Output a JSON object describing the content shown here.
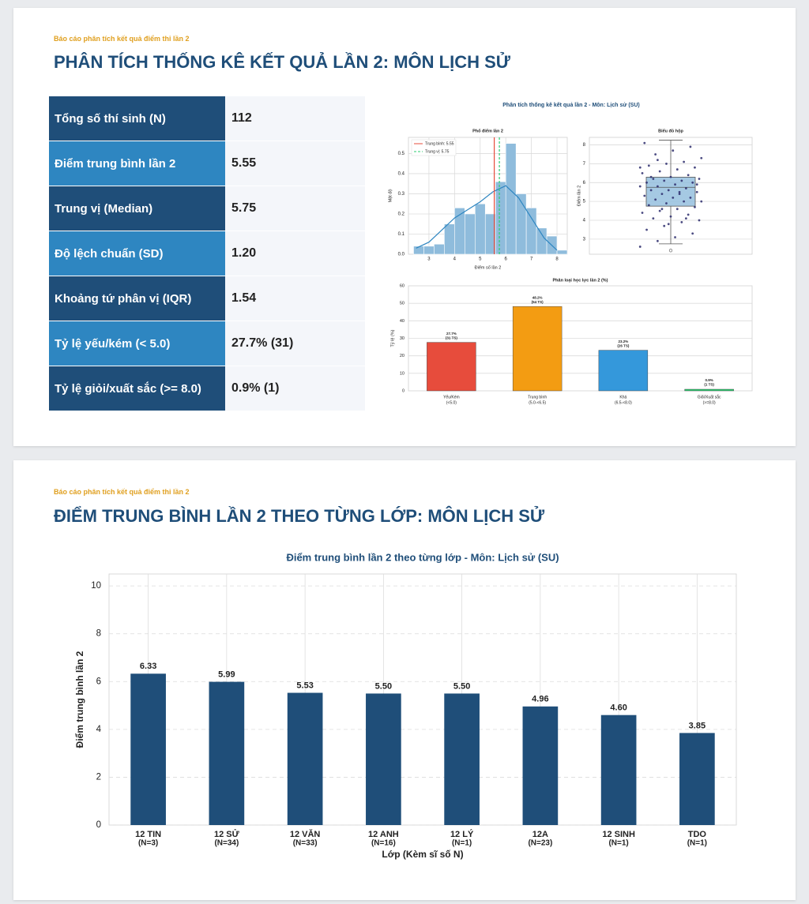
{
  "slides": [
    {
      "kicker": "Báo cáo phân tích kết quả điểm thi lần 2",
      "title": "PHÂN TÍCH THỐNG KÊ KẾT QUẢ LẦN 2: MÔN LỊCH SỬ",
      "figure_title": "Phân tích thống kê kết quả lần 2 - Môn: Lịch sử (SU)"
    },
    {
      "kicker": "Báo cáo phân tích kết quả điểm thi lần 2",
      "title": "ĐIỂM TRUNG BÌNH LẦN 2 THEO TỪNG LỚP: MÔN LỊCH SỬ"
    }
  ],
  "table": {
    "rows": [
      [
        "Tổng số thí sinh (N)",
        "112"
      ],
      [
        "Điểm trung bình lần 2",
        "5.55"
      ],
      [
        "Trung vị (Median)",
        "5.75"
      ],
      [
        "Độ lệch chuẩn (SD)",
        "1.20"
      ],
      [
        "Khoảng tứ phân vị (IQR)",
        "1.54"
      ],
      [
        "Tỷ lệ yếu/kém (< 5.0)",
        "27.7% (31)"
      ],
      [
        "Tỷ lệ giỏi/xuất sắc (>= 8.0)",
        "0.9% (1)"
      ]
    ]
  },
  "chart_data": [
    {
      "type": "histogram",
      "title": "Phổ điểm lần 2",
      "x_label": "Điểm số lần 2",
      "y_label": "Mật độ",
      "bins": [
        2.4,
        2.8,
        3.2,
        3.6,
        4.0,
        4.4,
        4.8,
        5.2,
        5.6,
        6.0,
        6.4,
        6.8,
        7.2,
        7.6,
        8.0,
        8.4
      ],
      "values": [
        0.04,
        0.04,
        0.05,
        0.15,
        0.23,
        0.2,
        0.25,
        0.2,
        0.36,
        0.55,
        0.3,
        0.23,
        0.13,
        0.09,
        0.02
      ],
      "color": "#8fbcdc",
      "xlim": [
        2.2,
        8.4
      ],
      "xticks": [
        3,
        4,
        5,
        6,
        7,
        8
      ],
      "ylim": [
        0,
        0.58
      ],
      "yticks": [
        {
          "value": 0,
          "label": "0.0"
        },
        0.1,
        0.2,
        0.3,
        0.4,
        0.5
      ],
      "grid": true,
      "legend": "upper left",
      "kde": {
        "color": "#2e86c1",
        "x": [
          2.5,
          3,
          3.5,
          4,
          4.5,
          5,
          5.5,
          6,
          6.5,
          7,
          7.5,
          8
        ],
        "values": [
          0.03,
          0.06,
          0.12,
          0.18,
          0.22,
          0.26,
          0.31,
          0.34,
          0.28,
          0.18,
          0.08,
          0.02
        ]
      },
      "reference_lines": [
        {
          "name": "Trung bình: 5.55",
          "value": 5.55,
          "color": "#e74c3c",
          "dash": false
        },
        {
          "name": "Trung vị: 5.75",
          "value": 5.75,
          "color": "#2ecc71",
          "dash": true
        }
      ]
    },
    {
      "type": "box",
      "title": "Biểu đồ hộp",
      "y_label": "Điểm lần 2",
      "ylim": [
        2.2,
        8.4
      ],
      "yticks": [
        3,
        4,
        5,
        6,
        7,
        8
      ],
      "grid": true,
      "whislo": 2.75,
      "q1": 4.75,
      "median": 5.75,
      "q3": 6.29,
      "whishi": 8.25,
      "fliers": [
        2.4
      ],
      "box_color": "#8fbcdc",
      "point_color": "#2c2c6c",
      "points": [
        2.6,
        2.9,
        3.1,
        3.3,
        3.5,
        3.7,
        3.9,
        4.0,
        4.1,
        4.2,
        4.3,
        4.4,
        4.5,
        4.6,
        4.7,
        4.8,
        4.9,
        5.0,
        5.0,
        5.1,
        5.2,
        5.2,
        5.3,
        5.4,
        5.5,
        5.5,
        5.6,
        5.6,
        5.7,
        5.8,
        5.8,
        5.9,
        6.0,
        6.0,
        6.1,
        6.1,
        6.2,
        6.2,
        6.3,
        6.4,
        6.5,
        6.6,
        6.7,
        6.8,
        6.9,
        7.0,
        7.1,
        7.3,
        7.5,
        7.7,
        7.9,
        8.1,
        4.6,
        5.4,
        5.9,
        6.3,
        3.8,
        4.1,
        6.8,
        7.2
      ]
    },
    {
      "type": "bar",
      "title": "Phân loại học lực lần 2 (%)",
      "y_label": "Tỷ lệ (%)",
      "categories": [
        "Yếu/Kém",
        "Trung bình",
        "Khá",
        "Giỏi/Xuất sắc"
      ],
      "subcategories": [
        "(<5.0)",
        "(5.0-<6.5)",
        "(6.5-<8.0)",
        "(>=8.0)"
      ],
      "values": [
        27.7,
        48.2,
        23.2,
        0.9
      ],
      "value_labels": [
        "27.7%",
        "48.2%",
        "23.2%",
        "0.9%"
      ],
      "count_labels": [
        "(31 TS)",
        "(54 TS)",
        "(26 TS)",
        "(1 TS)"
      ],
      "colors": [
        "#e74c3c",
        "#f39c12",
        "#3498db",
        "#2ecc71"
      ],
      "ylim": [
        0,
        60
      ],
      "yticks": [
        0,
        10,
        20,
        30,
        40,
        50,
        60
      ],
      "grid": true
    },
    {
      "type": "bar",
      "title": "Điểm trung bình lần 2 theo từng lớp - Môn: Lịch sử (SU)",
      "x_label": "Lớp (Kèm sĩ số N)",
      "y_label": "Điểm trung bình lần 2",
      "categories": [
        "12 TIN",
        "12 SỬ",
        "12 VĂN",
        "12 ANH",
        "12 LÝ",
        "12A",
        "12 SINH",
        "TDO"
      ],
      "subcategories": [
        "(N=3)",
        "(N=34)",
        "(N=33)",
        "(N=16)",
        "(N=1)",
        "(N=23)",
        "(N=1)",
        "(N=1)"
      ],
      "values": [
        6.33,
        5.99,
        5.53,
        5.5,
        5.5,
        4.96,
        4.6,
        3.85
      ],
      "value_labels": [
        "6.33",
        "5.99",
        "5.53",
        "5.50",
        "5.50",
        "4.96",
        "4.60",
        "3.85"
      ],
      "color": "#1f4e79",
      "ylim": [
        0,
        10.5
      ],
      "yticks": [
        0,
        2,
        4,
        6,
        8,
        10
      ],
      "grid": true
    }
  ]
}
